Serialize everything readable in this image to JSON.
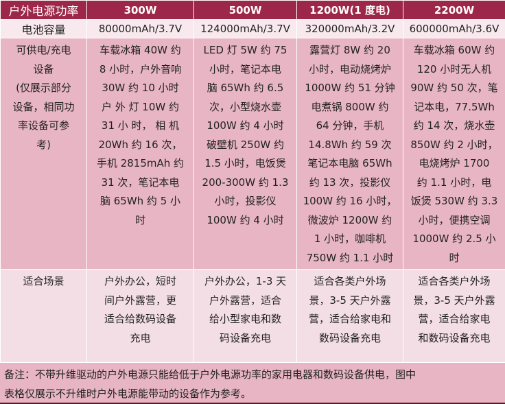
{
  "header": [
    "户外电源功率",
    "300W",
    "500W",
    "1200W(1 度电)",
    "2200W"
  ],
  "capacity": {
    "label": "电池容量",
    "values": [
      "80000mAh/3.7V",
      "124000mAh/3.7V",
      "320000mAh/3.2V",
      "600000mAh/3.6V"
    ]
  },
  "devices": {
    "label": [
      "可供电/充电",
      "设备",
      "(仅展示部分",
      "设备，相同功",
      "率设备可参",
      "考)"
    ],
    "cells": [
      [
        "车载冰箱 40W 约",
        "8 小时，户外音响",
        "30W 约 10 小时",
        "户 外 灯  10W  约",
        "31  小 时，  相 机",
        "20Wh 约 16 次，",
        "手机 2815mAh 约",
        "31 次，笔记本电",
        "脑 65Wh 约 5 小",
        "时"
      ],
      [
        "LED 灯 5W 约 75",
        "小时，笔记本电",
        "脑 65Wh 约 6.5",
        "次，小型烧水壶",
        "100W 约 4 小时",
        "破壁机 250W 约",
        "1.5 小时，电饭煲",
        "200-300W 约 1.3",
        "小时，投影仪",
        "100W 约 4 小时"
      ],
      [
        "露营灯 8W 约 20",
        "小时，电动烧烤炉",
        "1000W 约 51 分钟",
        "电煮锅 800W 约",
        "64 分钟，手机",
        "14.8Wh 约 59 次",
        "笔记本电脑 65Wh",
        "约 13 次，投影仪",
        "100W 约 16 小时，",
        "微波炉 1200W 约",
        "1 小时，咖啡机",
        "750W 约 1.1 小时"
      ],
      [
        "车载冰箱 60W 约",
        "120 小时无人机",
        "90W 约 50 次，笔",
        "记本电，77.5Wh",
        "约 14 次，烧水壶",
        "850W 约 2 小时，",
        "电烧烤炉 1700",
        "约 1.1 小时，电",
        "饭煲 530W 约 3.3",
        "小时，便携空调",
        "1000W 约 2.5 小",
        "时"
      ]
    ]
  },
  "scenario": {
    "label": [
      "适合场景"
    ],
    "cells": [
      [
        "户外办公，短时",
        "间户外露营，更",
        "适合给数码设备",
        "充电"
      ],
      [
        "户外办公，1-3 天",
        "户外露营，适合",
        "给小型家电和数",
        "码设备充电"
      ],
      [
        "适合各类户外场",
        "景，3-5 天户外露",
        "营，适合给家电和",
        "数码设备充电"
      ],
      [
        "适合各类户外场",
        "景，3-5 天户外露",
        "营，适合给家电",
        "和数码设备充电"
      ]
    ]
  },
  "note": [
    "备注：不带升维驱动的户外电源只能给低于户外电源功率的家用电器和数码设备供电，图中",
    "表格仅展示不升维时户外电源能带动的设备作为参考。"
  ],
  "colors": {
    "header": "#9c2748",
    "capacity_row": "#f7e9ed",
    "device_row": "#e8b5c4",
    "scenario_row": "#f4dee5"
  }
}
